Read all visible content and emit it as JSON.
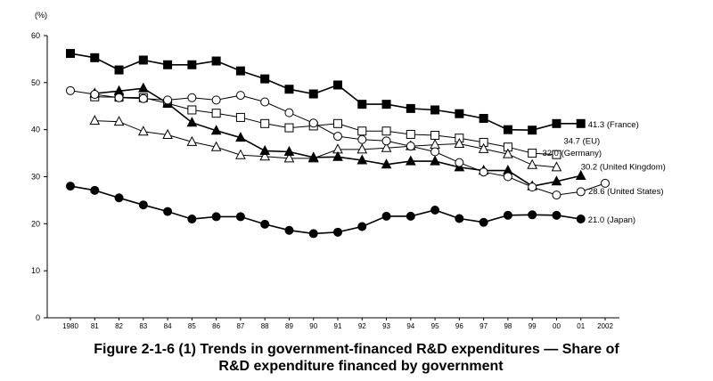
{
  "chart_data": {
    "type": "line",
    "ylabel": "(%)",
    "ylim": [
      0,
      60
    ],
    "yticks": [
      "0",
      "10",
      "20",
      "30",
      "40",
      "50",
      "60"
    ],
    "x_labels": [
      "1980",
      "81",
      "82",
      "83",
      "84",
      "85",
      "86",
      "87",
      "88",
      "89",
      "90",
      "91",
      "92",
      "93",
      "94",
      "95",
      "96",
      "97",
      "98",
      "99",
      "00",
      "01",
      "2002"
    ],
    "x": [
      1980,
      1981,
      1982,
      1983,
      1984,
      1985,
      1986,
      1987,
      1988,
      1989,
      1990,
      1991,
      1992,
      1993,
      1994,
      1995,
      1996,
      1997,
      1998,
      1999,
      2000,
      2001,
      2002
    ],
    "grid": false,
    "series": [
      {
        "name": "France",
        "end_label": "41.3 (France)",
        "marker": "square-filled",
        "color": "#000000",
        "points": [
          [
            1980,
            56.2
          ],
          [
            1981,
            55.3
          ],
          [
            1982,
            52.7
          ],
          [
            1983,
            54.8
          ],
          [
            1984,
            53.8
          ],
          [
            1985,
            53.8
          ],
          [
            1986,
            54.6
          ],
          [
            1987,
            52.5
          ],
          [
            1988,
            50.8
          ],
          [
            1989,
            48.6
          ],
          [
            1990,
            47.6
          ],
          [
            1991,
            49.5
          ],
          [
            1992,
            45.4
          ],
          [
            1993,
            45.4
          ],
          [
            1994,
            44.5
          ],
          [
            1995,
            44.2
          ],
          [
            1996,
            43.4
          ],
          [
            1997,
            42.4
          ],
          [
            1998,
            40.0
          ],
          [
            1999,
            39.9
          ],
          [
            2000,
            41.3
          ],
          [
            2001,
            41.3
          ]
        ]
      },
      {
        "name": "EU",
        "end_label": "34.7 (EU)",
        "marker": "square-open",
        "color": "#000000",
        "points": [
          [
            1981,
            47.0
          ],
          [
            1982,
            46.9
          ],
          [
            1983,
            46.8
          ],
          [
            1984,
            45.6
          ],
          [
            1985,
            44.2
          ],
          [
            1986,
            43.5
          ],
          [
            1987,
            42.6
          ],
          [
            1988,
            41.3
          ],
          [
            1989,
            40.4
          ],
          [
            1990,
            40.8
          ],
          [
            1991,
            41.3
          ],
          [
            1992,
            39.7
          ],
          [
            1993,
            39.7
          ],
          [
            1994,
            39.0
          ],
          [
            1995,
            38.8
          ],
          [
            1996,
            38.2
          ],
          [
            1997,
            37.3
          ],
          [
            1998,
            36.3
          ],
          [
            1999,
            35.0
          ],
          [
            2000,
            34.7
          ]
        ]
      },
      {
        "name": "Germany",
        "end_label": "32.0 (Germany)",
        "marker": "triangle-open",
        "color": "#000000",
        "points": [
          [
            1981,
            41.9
          ],
          [
            1982,
            41.7
          ],
          [
            1983,
            39.6
          ],
          [
            1984,
            38.9
          ],
          [
            1985,
            37.4
          ],
          [
            1986,
            36.3
          ],
          [
            1987,
            34.6
          ],
          [
            1988,
            34.3
          ],
          [
            1989,
            33.9
          ],
          [
            1990,
            33.9
          ],
          [
            1991,
            35.8
          ],
          [
            1992,
            35.8
          ],
          [
            1993,
            36.1
          ],
          [
            1994,
            36.5
          ],
          [
            1995,
            36.8
          ],
          [
            1996,
            37.0
          ],
          [
            1997,
            35.9
          ],
          [
            1998,
            34.8
          ],
          [
            1999,
            32.5
          ],
          [
            2000,
            32.0
          ]
        ]
      },
      {
        "name": "United Kingdom",
        "end_label": "30.2 (United Kingdom)",
        "marker": "triangle-filled",
        "color": "#000000",
        "points": [
          [
            1981,
            47.7
          ],
          [
            1982,
            48.2
          ],
          [
            1983,
            48.8
          ],
          [
            1984,
            45.6
          ],
          [
            1985,
            41.5
          ],
          [
            1986,
            39.8
          ],
          [
            1987,
            38.3
          ],
          [
            1988,
            35.5
          ],
          [
            1989,
            35.3
          ],
          [
            1990,
            34.1
          ],
          [
            1991,
            34.2
          ],
          [
            1992,
            33.5
          ],
          [
            1993,
            32.6
          ],
          [
            1994,
            33.3
          ],
          [
            1995,
            33.3
          ],
          [
            1996,
            32.0
          ],
          [
            1997,
            31.3
          ],
          [
            1998,
            31.3
          ],
          [
            1999,
            28.0
          ],
          [
            2000,
            29.0
          ],
          [
            2001,
            30.2
          ]
        ]
      },
      {
        "name": "United States",
        "end_label": "28.6 (United States)",
        "marker": "circle-open",
        "color": "#000000",
        "points": [
          [
            1980,
            48.3
          ],
          [
            1981,
            47.5
          ],
          [
            1982,
            46.8
          ],
          [
            1983,
            46.6
          ],
          [
            1984,
            46.3
          ],
          [
            1985,
            46.8
          ],
          [
            1986,
            46.3
          ],
          [
            1987,
            47.3
          ],
          [
            1988,
            45.9
          ],
          [
            1989,
            43.6
          ],
          [
            1990,
            41.4
          ],
          [
            1991,
            38.6
          ],
          [
            1992,
            37.9
          ],
          [
            1993,
            37.6
          ],
          [
            1994,
            36.5
          ],
          [
            1995,
            35.3
          ],
          [
            1996,
            33.0
          ],
          [
            1997,
            31.0
          ],
          [
            1998,
            30.0
          ],
          [
            1999,
            27.8
          ],
          [
            2000,
            26.1
          ],
          [
            2001,
            26.8
          ],
          [
            2002,
            28.6
          ]
        ]
      },
      {
        "name": "Japan",
        "end_label": "21.0 (Japan)",
        "marker": "circle-filled",
        "color": "#000000",
        "points": [
          [
            1980,
            28.0
          ],
          [
            1981,
            27.1
          ],
          [
            1982,
            25.5
          ],
          [
            1983,
            24.0
          ],
          [
            1984,
            22.6
          ],
          [
            1985,
            21.0
          ],
          [
            1986,
            21.5
          ],
          [
            1987,
            21.5
          ],
          [
            1988,
            19.9
          ],
          [
            1989,
            18.6
          ],
          [
            1990,
            17.9
          ],
          [
            1991,
            18.2
          ],
          [
            1992,
            19.4
          ],
          [
            1993,
            21.6
          ],
          [
            1994,
            21.6
          ],
          [
            1995,
            22.9
          ],
          [
            1996,
            21.1
          ],
          [
            1997,
            20.3
          ],
          [
            1998,
            21.8
          ],
          [
            1999,
            21.9
          ],
          [
            2000,
            21.8
          ],
          [
            2001,
            21.0
          ]
        ]
      }
    ]
  },
  "caption": {
    "line1": "Figure 2-1-6 (1)  Trends in government-financed R&D expenditures ― Share of",
    "line2": "R&D expenditure financed by government"
  }
}
